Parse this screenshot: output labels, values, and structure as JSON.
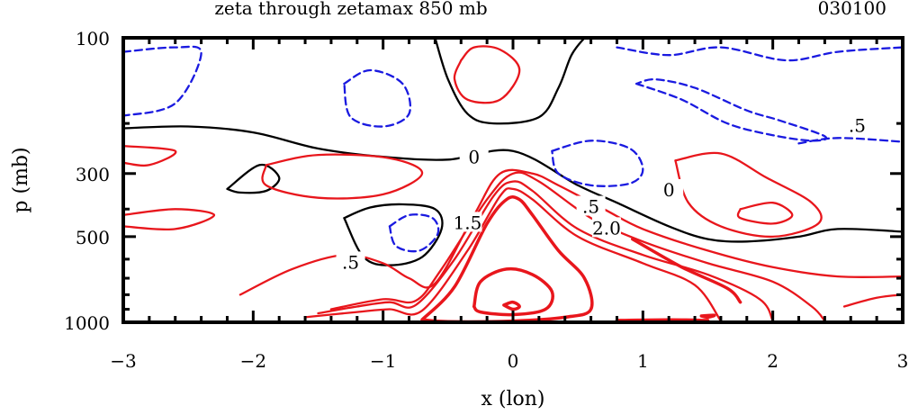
{
  "chart_data": {
    "type": "contour",
    "title": "zeta through zetamax 850 mb",
    "time_label": "030100",
    "xlabel": "x (lon)",
    "ylabel": "p (mb)",
    "xlim": [
      -3,
      3
    ],
    "ylim": [
      1000,
      100
    ],
    "y_scale": "log",
    "x_ticks": [
      -3,
      -2,
      -1,
      0,
      1,
      2,
      3
    ],
    "x_tick_labels": [
      "−3",
      "−2",
      "−1",
      "0",
      "1",
      "2",
      "3"
    ],
    "y_ticks": [
      100,
      300,
      500,
      1000
    ],
    "y_tick_labels": [
      "100",
      "300",
      "500",
      "1000"
    ],
    "grid": false,
    "colors": {
      "positive": "#e8161c",
      "zero": "#000000",
      "negative": "#1a1ae0"
    },
    "contour_labels": [
      {
        "text": ".5",
        "x": 2.65,
        "p": 205,
        "color": "#000000"
      },
      {
        "text": "0",
        "x": -0.3,
        "p": 265,
        "color": "#000000"
      },
      {
        "text": "0",
        "x": 1.2,
        "p": 345,
        "color": "#000000"
      },
      {
        "text": ".5",
        "x": 0.6,
        "p": 395,
        "color": "#000000"
      },
      {
        "text": "2.0",
        "x": 0.72,
        "p": 470,
        "color": "#000000"
      },
      {
        "text": ".5",
        "x": -1.25,
        "p": 620,
        "color": "#000000"
      },
      {
        "text": "1.5",
        "x": -0.35,
        "p": 450,
        "color": "#000000"
      }
    ],
    "series": [
      {
        "level": 0,
        "color": "#000000",
        "style": "solid",
        "points": [
          [
            -3,
            208
          ],
          [
            -2.5,
            205
          ],
          [
            -2,
            215
          ],
          [
            -1.5,
            245
          ],
          [
            -1,
            262
          ],
          [
            -0.5,
            268
          ],
          [
            0,
            250
          ],
          [
            0.5,
            330
          ],
          [
            0.8,
            380
          ],
          [
            1.2,
            460
          ],
          [
            1.5,
            510
          ],
          [
            1.8,
            520
          ],
          [
            2.2,
            500
          ],
          [
            2.5,
            470
          ],
          [
            3,
            480
          ]
        ]
      },
      {
        "level": 0,
        "color": "#000000",
        "style": "solid",
        "points": [
          [
            -1.3,
            430
          ],
          [
            -1.1,
            395
          ],
          [
            -0.85,
            385
          ],
          [
            -0.6,
            400
          ],
          [
            -0.55,
            470
          ],
          [
            -0.7,
            590
          ],
          [
            -0.95,
            630
          ],
          [
            -1.15,
            590
          ],
          [
            -1.3,
            430
          ]
        ]
      },
      {
        "level": 0,
        "color": "#000000",
        "style": "solid",
        "points": [
          [
            -2.2,
            340
          ],
          [
            -1.95,
            280
          ],
          [
            -1.8,
            310
          ],
          [
            -1.9,
            345
          ],
          [
            -2.1,
            350
          ],
          [
            -2.2,
            340
          ]
        ]
      },
      {
        "level": 0,
        "color": "#000000",
        "style": "solid",
        "points": [
          [
            -0.6,
            100
          ],
          [
            -0.5,
            140
          ],
          [
            -0.35,
            185
          ],
          [
            -0.15,
            200
          ],
          [
            0.2,
            190
          ],
          [
            0.35,
            150
          ],
          [
            0.45,
            115
          ],
          [
            0.55,
            100
          ]
        ]
      },
      {
        "level": -0.5,
        "color": "#1a1ae0",
        "style": "dashed",
        "points": [
          [
            -3,
            112
          ],
          [
            -2.6,
            108
          ],
          [
            -2.4,
            113
          ],
          [
            -2.6,
            170
          ],
          [
            -3,
            188
          ]
        ]
      },
      {
        "level": -0.5,
        "color": "#1a1ae0",
        "style": "dashed",
        "points": [
          [
            -1.3,
            145
          ],
          [
            -1.1,
            130
          ],
          [
            -0.85,
            145
          ],
          [
            -0.8,
            185
          ],
          [
            -1.0,
            205
          ],
          [
            -1.25,
            190
          ],
          [
            -1.3,
            145
          ]
        ]
      },
      {
        "level": -0.5,
        "color": "#1a1ae0",
        "style": "dashed",
        "points": [
          [
            0.8,
            108
          ],
          [
            1.2,
            115
          ],
          [
            1.6,
            108
          ],
          [
            2.1,
            120
          ],
          [
            2.5,
            112
          ],
          [
            3,
            108
          ]
        ]
      },
      {
        "level": -0.5,
        "color": "#1a1ae0",
        "style": "dashed",
        "points": [
          [
            0.95,
            145
          ],
          [
            1.3,
            165
          ],
          [
            1.65,
            200
          ],
          [
            2.0,
            220
          ],
          [
            2.3,
            230
          ],
          [
            2.4,
            222
          ],
          [
            2.05,
            195
          ],
          [
            1.8,
            180
          ],
          [
            1.4,
            150
          ],
          [
            1.1,
            140
          ],
          [
            0.95,
            145
          ]
        ]
      },
      {
        "level": -0.5,
        "color": "#1a1ae0",
        "style": "dashed",
        "points": [
          [
            2.2,
            235
          ],
          [
            2.5,
            225
          ],
          [
            3,
            232
          ]
        ]
      },
      {
        "level": -0.5,
        "color": "#1a1ae0",
        "style": "dashed",
        "points": [
          [
            0.3,
            250
          ],
          [
            0.6,
            230
          ],
          [
            0.9,
            245
          ],
          [
            1.0,
            290
          ],
          [
            0.9,
            325
          ],
          [
            0.6,
            330
          ],
          [
            0.35,
            300
          ],
          [
            0.3,
            250
          ]
        ]
      },
      {
        "level": -0.5,
        "color": "#1a1ae0",
        "style": "dashed",
        "points": [
          [
            -0.95,
            460
          ],
          [
            -0.8,
            420
          ],
          [
            -0.62,
            430
          ],
          [
            -0.58,
            490
          ],
          [
            -0.72,
            560
          ],
          [
            -0.9,
            540
          ],
          [
            -0.95,
            460
          ]
        ]
      },
      {
        "level": 0.5,
        "color": "#e8161c",
        "style": "solid",
        "points": [
          [
            -0.4,
            120
          ],
          [
            -0.3,
            108
          ],
          [
            -0.1,
            110
          ],
          [
            0.05,
            130
          ],
          [
            -0.1,
            165
          ],
          [
            -0.35,
            165
          ],
          [
            -0.45,
            140
          ],
          [
            -0.4,
            120
          ]
        ]
      },
      {
        "level": 0.5,
        "color": "#e8161c",
        "style": "solid",
        "points": [
          [
            -3,
            240
          ],
          [
            -2.6,
            250
          ],
          [
            -2.8,
            280
          ],
          [
            -3,
            275
          ]
        ]
      },
      {
        "level": 0.5,
        "color": "#e8161c",
        "style": "solid",
        "points": [
          [
            -1.9,
            280
          ],
          [
            -1.5,
            258
          ],
          [
            -0.95,
            265
          ],
          [
            -0.7,
            300
          ],
          [
            -1.0,
            355
          ],
          [
            -1.5,
            365
          ],
          [
            -1.9,
            330
          ],
          [
            -1.9,
            280
          ]
        ]
      },
      {
        "level": 0.5,
        "color": "#e8161c",
        "style": "solid",
        "points": [
          [
            -3,
            420
          ],
          [
            -2.6,
            400
          ],
          [
            -2.3,
            420
          ],
          [
            -2.6,
            470
          ],
          [
            -3,
            460
          ]
        ]
      },
      {
        "level": 0.5,
        "color": "#e8161c",
        "style": "solid",
        "points": [
          [
            -2.1,
            800
          ],
          [
            -1.7,
            650
          ],
          [
            -1.3,
            580
          ],
          [
            -1.0,
            620
          ],
          [
            -0.8,
            700
          ],
          [
            -0.6,
            730
          ],
          [
            -0.3,
            420
          ],
          [
            -0.1,
            300
          ],
          [
            0.15,
            300
          ],
          [
            0.35,
            330
          ],
          [
            0.7,
            400
          ],
          [
            1.0,
            470
          ],
          [
            1.5,
            560
          ],
          [
            2.0,
            640
          ],
          [
            2.5,
            690
          ],
          [
            3,
            690
          ]
        ]
      },
      {
        "level": 0.5,
        "color": "#e8161c",
        "style": "solid",
        "points": [
          [
            1.25,
            270
          ],
          [
            1.6,
            255
          ],
          [
            1.95,
            310
          ],
          [
            2.3,
            380
          ],
          [
            2.35,
            450
          ],
          [
            2.0,
            500
          ],
          [
            1.6,
            460
          ],
          [
            1.35,
            380
          ],
          [
            1.25,
            270
          ]
        ]
      },
      {
        "level": 0.5,
        "color": "#e8161c",
        "style": "solid",
        "points": [
          [
            1.75,
            400
          ],
          [
            2.0,
            380
          ],
          [
            2.15,
            420
          ],
          [
            2.0,
            450
          ],
          [
            1.75,
            430
          ],
          [
            1.75,
            400
          ]
        ]
      },
      {
        "level": 0.5,
        "color": "#e8161c",
        "style": "solid",
        "points": [
          [
            2.55,
            880
          ],
          [
            2.8,
            820
          ],
          [
            3,
            800
          ]
        ]
      },
      {
        "level": 1.0,
        "color": "#e8161c",
        "style": "solid",
        "points": [
          [
            -1.4,
            900
          ],
          [
            -1.0,
            830
          ],
          [
            -0.75,
            840
          ],
          [
            -0.55,
            650
          ],
          [
            -0.2,
            370
          ],
          [
            0.0,
            300
          ],
          [
            0.2,
            320
          ],
          [
            0.6,
            430
          ],
          [
            1.0,
            520
          ],
          [
            1.5,
            620
          ],
          [
            2.0,
            720
          ],
          [
            2.3,
            880
          ],
          [
            2.4,
            990
          ]
        ]
      },
      {
        "level": 1.0,
        "color": "#e8161c",
        "style": "solid",
        "points": [
          [
            -1.5,
            930
          ],
          [
            -1.2,
            880
          ],
          [
            -0.95,
            850
          ],
          [
            -0.75,
            870
          ],
          [
            -0.45,
            600
          ],
          [
            -0.15,
            360
          ],
          [
            0.0,
            320
          ],
          [
            0.15,
            345
          ],
          [
            0.5,
            470
          ],
          [
            1.0,
            580
          ],
          [
            1.5,
            680
          ],
          [
            1.9,
            830
          ],
          [
            2.0,
            990
          ]
        ]
      },
      {
        "level": 1.5,
        "color": "#e8161c",
        "style": "solid",
        "points": [
          [
            -1.6,
            960
          ],
          [
            -1.2,
            920
          ],
          [
            -0.95,
            900
          ],
          [
            -0.7,
            910
          ],
          [
            -0.35,
            560
          ],
          [
            -0.1,
            360
          ],
          [
            0.0,
            340
          ],
          [
            0.15,
            370
          ],
          [
            0.5,
            500
          ],
          [
            1.0,
            620
          ],
          [
            1.4,
            740
          ],
          [
            1.6,
            990
          ]
        ]
      },
      {
        "level": 2.0,
        "color": "#e8161c",
        "style": "solid",
        "width": 3.5,
        "points": [
          [
            -0.7,
            980
          ],
          [
            -0.45,
            750
          ],
          [
            -0.2,
            450
          ],
          [
            -0.05,
            370
          ],
          [
            0.05,
            370
          ],
          [
            0.15,
            420
          ],
          [
            0.35,
            560
          ],
          [
            0.55,
            700
          ],
          [
            0.6,
            900
          ],
          [
            0.4,
            960
          ],
          [
            0.0,
            990
          ],
          [
            -0.5,
            995
          ],
          [
            -0.7,
            980
          ]
        ]
      },
      {
        "level": 2.0,
        "color": "#e8161c",
        "style": "solid",
        "width": 3.5,
        "points": [
          [
            0.92,
            510
          ],
          [
            1.3,
            640
          ],
          [
            1.65,
            760
          ],
          [
            1.75,
            850
          ]
        ]
      },
      {
        "level": 2.5,
        "color": "#e8161c",
        "style": "solid",
        "width": 3.5,
        "points": [
          [
            -0.3,
            880
          ],
          [
            -0.25,
            720
          ],
          [
            -0.05,
            650
          ],
          [
            0.15,
            680
          ],
          [
            0.3,
            780
          ],
          [
            0.25,
            900
          ],
          [
            0.0,
            940
          ],
          [
            -0.25,
            920
          ],
          [
            -0.3,
            880
          ]
        ]
      },
      {
        "level": 3.0,
        "color": "#e8161c",
        "style": "solid",
        "width": 3.5,
        "points": [
          [
            -0.07,
            870
          ],
          [
            0.0,
            850
          ],
          [
            0.05,
            880
          ],
          [
            0.0,
            900
          ],
          [
            -0.07,
            870
          ]
        ]
      },
      {
        "level": 2.0,
        "color": "#e8161c",
        "style": "solid",
        "width": 3.5,
        "points": [
          [
            0.8,
            985
          ],
          [
            1.2,
            980
          ],
          [
            1.5,
            985
          ]
        ]
      },
      {
        "level": 2.0,
        "color": "#e8161c",
        "style": "solid",
        "width": 3.5,
        "points": [
          [
            1.45,
            950
          ],
          [
            1.55,
            945
          ],
          [
            1.5,
            960
          ],
          [
            1.45,
            950
          ]
        ]
      }
    ]
  }
}
